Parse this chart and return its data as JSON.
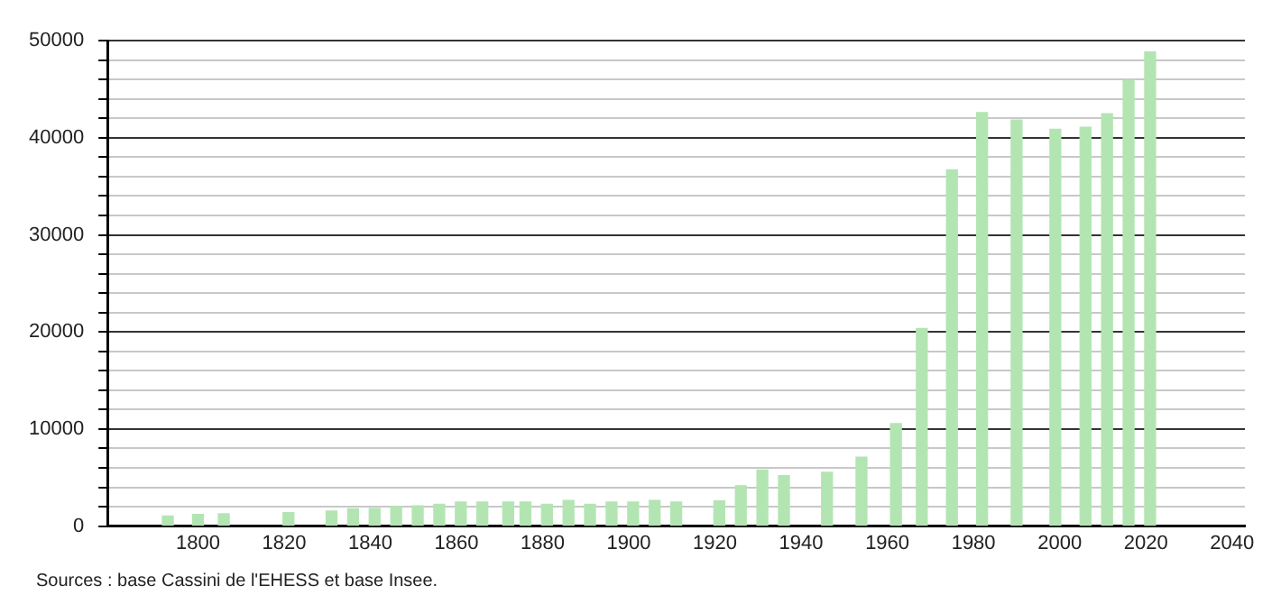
{
  "chart_data": {
    "type": "bar",
    "x": [
      1793,
      1800,
      1806,
      1821,
      1831,
      1836,
      1841,
      1846,
      1851,
      1856,
      1861,
      1866,
      1872,
      1876,
      1881,
      1886,
      1891,
      1896,
      1901,
      1906,
      1911,
      1921,
      1926,
      1931,
      1936,
      1946,
      1954,
      1962,
      1968,
      1975,
      1982,
      1990,
      1999,
      2006,
      2011,
      2016,
      2021
    ],
    "values": [
      1040,
      1210,
      1270,
      1380,
      1560,
      1790,
      1800,
      2020,
      2080,
      2250,
      2480,
      2480,
      2480,
      2480,
      2250,
      2650,
      2250,
      2480,
      2480,
      2650,
      2480,
      2600,
      4150,
      5770,
      5190,
      5540,
      7090,
      10550,
      20360,
      36700,
      42600,
      41840,
      40870,
      41090,
      42480,
      45890,
      48840
    ],
    "color": "#b3e5b3",
    "xlim": [
      1779,
      2043
    ],
    "xticks": [
      1800,
      1820,
      1840,
      1860,
      1880,
      1900,
      1920,
      1940,
      1960,
      1980,
      2000,
      2020,
      2040
    ],
    "ylim": [
      0,
      50000
    ],
    "yticks": [
      0,
      {
        "value": 2000,
        "label": null
      },
      {
        "value": 4000,
        "label": null
      },
      {
        "value": 6000,
        "label": null
      },
      {
        "value": 8000,
        "label": null
      },
      10000,
      {
        "value": 12000,
        "label": null
      },
      {
        "value": 14000,
        "label": null
      },
      {
        "value": 16000,
        "label": null
      },
      {
        "value": 18000,
        "label": null
      },
      20000,
      {
        "value": 22000,
        "label": null
      },
      {
        "value": 24000,
        "label": null
      },
      {
        "value": 26000,
        "label": null
      },
      {
        "value": 28000,
        "label": null
      },
      30000,
      {
        "value": 32000,
        "label": null
      },
      {
        "value": 34000,
        "label": null
      },
      {
        "value": 36000,
        "label": null
      },
      {
        "value": 38000,
        "label": null
      },
      40000,
      {
        "value": 42000,
        "label": null
      },
      {
        "value": 44000,
        "label": null
      },
      {
        "value": 46000,
        "label": null
      },
      {
        "value": 48000,
        "label": null
      },
      50000
    ],
    "grid": "y",
    "annotations": [
      "Sources : base Cassini de l'EHESS et base Insee."
    ]
  }
}
